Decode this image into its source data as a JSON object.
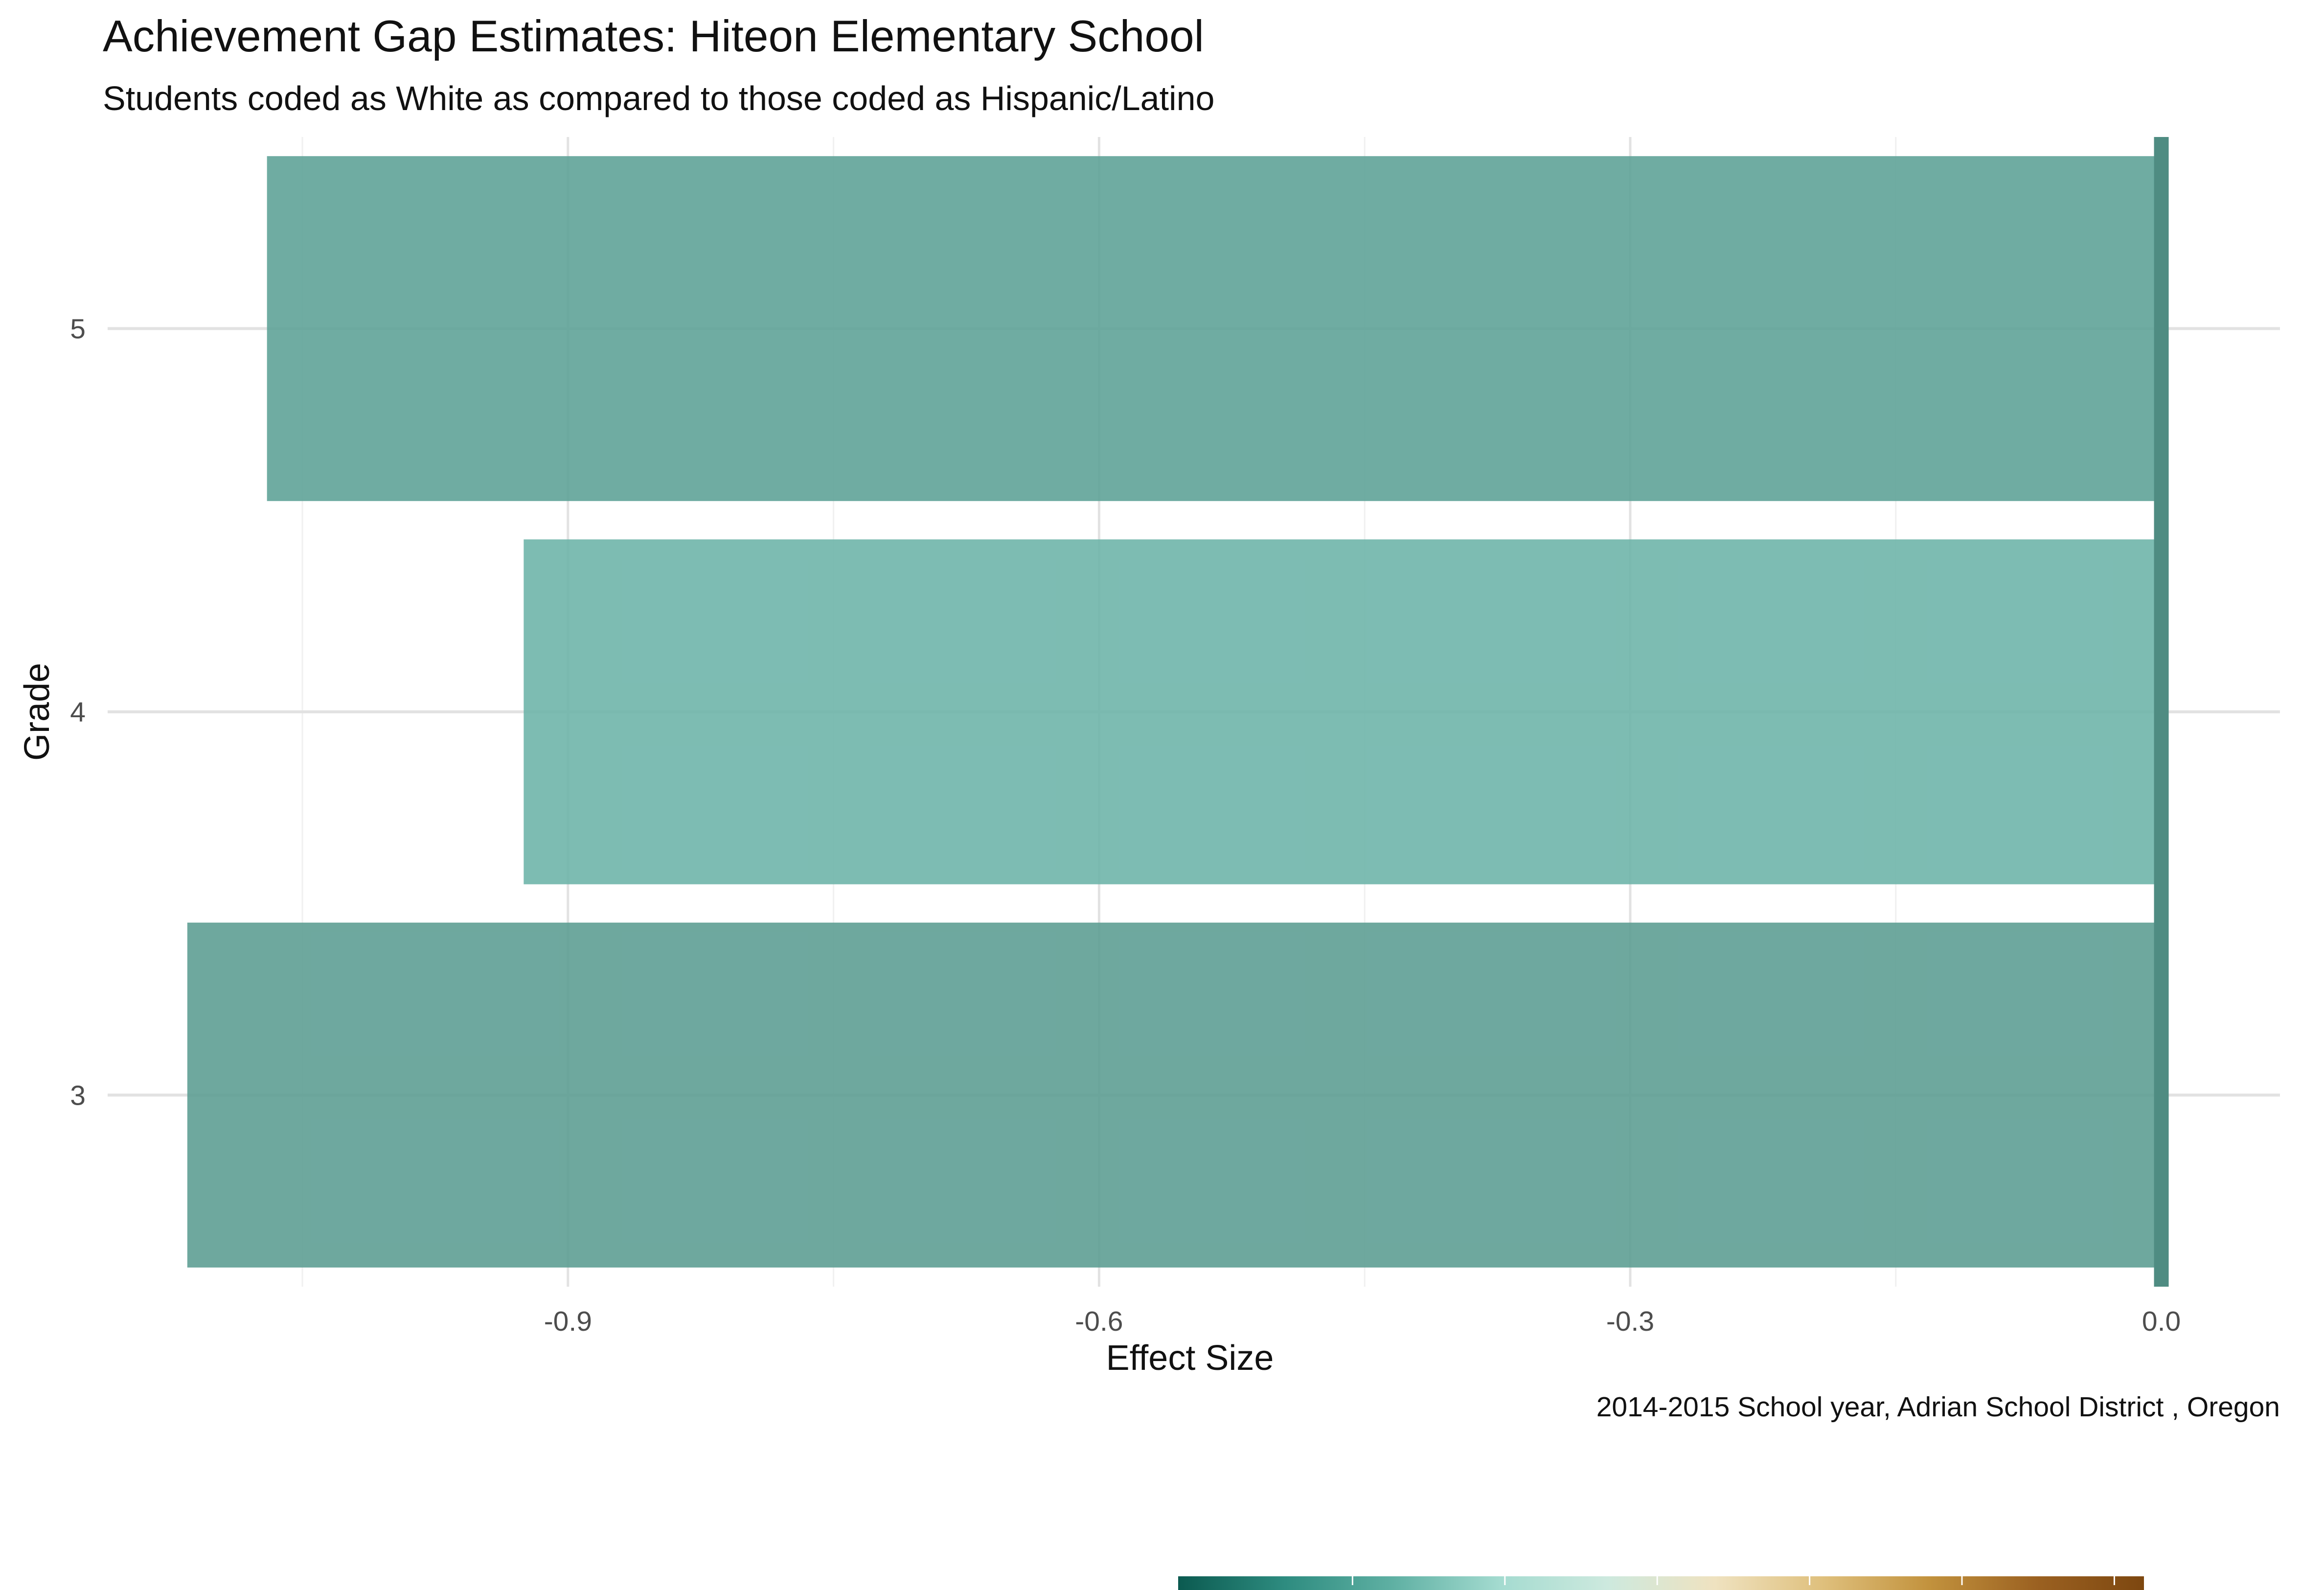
{
  "chart_data": {
    "type": "bar",
    "orientation": "horizontal",
    "title": "Achievement Gap Estimates: Hiteon Elementary School",
    "subtitle": "Students coded as White as compared to those coded as Hispanic/Latino",
    "xlabel": "Effect Size",
    "ylabel": "Grade",
    "caption": "2014-2015 School year,  Adrian School District , Oregon",
    "categories": [
      "3",
      "4",
      "5"
    ],
    "values": [
      -1.115,
      -0.925,
      -1.07
    ],
    "bar_colors": [
      "#5e9e94",
      "#6fb5aa",
      "#5fa398"
    ],
    "xlim": [
      -1.16,
      0.067
    ],
    "x_ticks": [
      -0.9,
      -0.6,
      -0.3,
      0.0
    ],
    "x_tick_labels": [
      "-0.9",
      "-0.6",
      "-0.3",
      "0.0"
    ],
    "reference_line": {
      "x": 0.0,
      "color": "#4f8c82"
    },
    "grid": true,
    "legend": {
      "type": "colorbar",
      "position": "bottom",
      "colors": [
        "#0b5a50",
        "#2e8c80",
        "#5fb0a3",
        "#a4dbd0",
        "#cde9de",
        "#efe2c0",
        "#dfc07d",
        "#c2923d",
        "#9b6121",
        "#7d4710"
      ]
    }
  }
}
